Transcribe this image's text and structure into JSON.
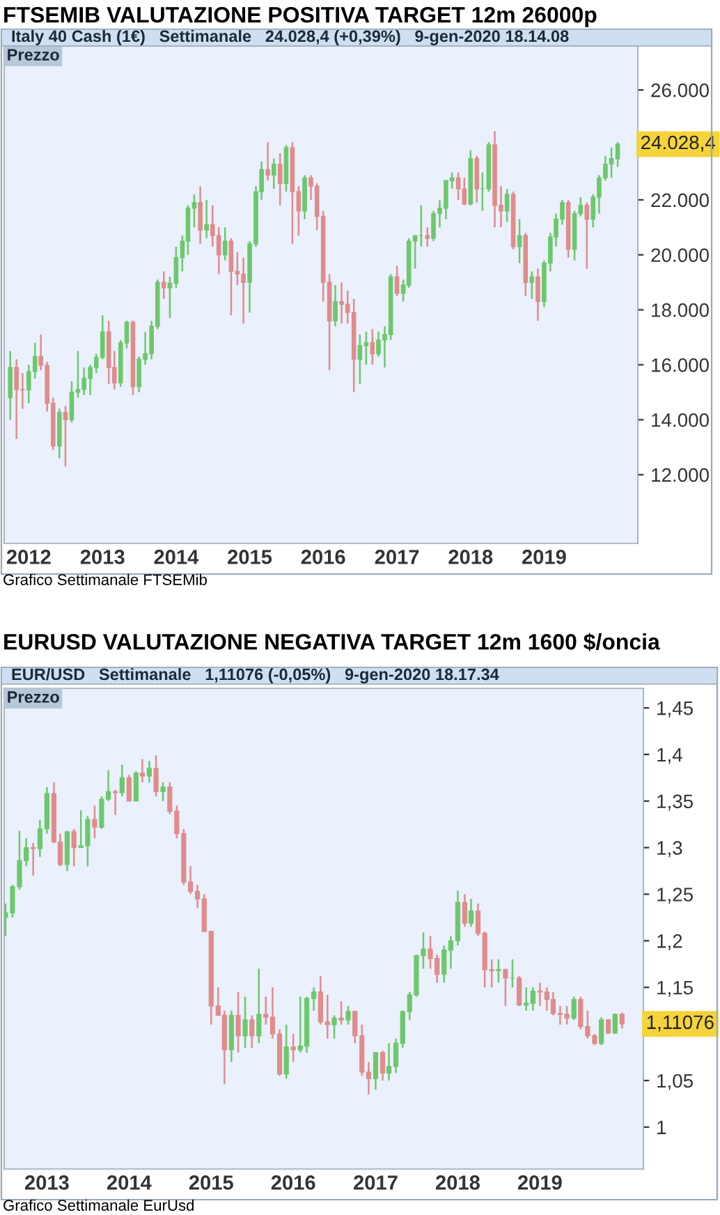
{
  "chart_data": [
    {
      "type": "candlestick",
      "title": "FTSEMIB VALUTAZIONE POSITIVA TARGET 12m 26000p",
      "subtitle": "Italy 40 Cash (1€)   Settimanale   24.028,4 (+0,39%)   9-gen-2020 18.14.08",
      "annotations": [
        "Prezzo",
        {
          "text": "24.028,4",
          "x": "2020-01",
          "y": 24028.4
        },
        "Grafico Settimanale FTSEMib"
      ],
      "x": [
        "2011-10",
        "2011-11",
        "2011-12",
        "2012-01",
        "2012-02",
        "2012-03",
        "2012-04",
        "2012-05",
        "2012-06",
        "2012-07",
        "2012-08",
        "2012-09",
        "2012-10",
        "2012-11",
        "2012-12",
        "2013-01",
        "2013-02",
        "2013-03",
        "2013-04",
        "2013-05",
        "2013-06",
        "2013-07",
        "2013-08",
        "2013-09",
        "2013-10",
        "2013-11",
        "2013-12",
        "2014-01",
        "2014-02",
        "2014-03",
        "2014-04",
        "2014-05",
        "2014-06",
        "2014-07",
        "2014-08",
        "2014-09",
        "2014-10",
        "2014-11",
        "2014-12",
        "2015-01",
        "2015-02",
        "2015-03",
        "2015-04",
        "2015-05",
        "2015-06",
        "2015-07",
        "2015-08",
        "2015-09",
        "2015-10",
        "2015-11",
        "2015-12",
        "2016-01",
        "2016-02",
        "2016-03",
        "2016-04",
        "2016-05",
        "2016-06",
        "2016-07",
        "2016-08",
        "2016-09",
        "2016-10",
        "2016-11",
        "2016-12",
        "2017-01",
        "2017-02",
        "2017-03",
        "2017-04",
        "2017-05",
        "2017-06",
        "2017-07",
        "2017-08",
        "2017-09",
        "2017-10",
        "2017-11",
        "2017-12",
        "2018-01",
        "2018-02",
        "2018-03",
        "2018-04",
        "2018-05",
        "2018-06",
        "2018-07",
        "2018-08",
        "2018-09",
        "2018-10",
        "2018-11",
        "2018-12",
        "2019-01",
        "2019-02",
        "2019-03",
        "2019-04",
        "2019-05",
        "2019-06",
        "2019-07",
        "2019-08",
        "2019-09",
        "2019-10",
        "2019-11",
        "2019-12",
        "2020-01"
      ],
      "ohlc": [
        [
          14800,
          16500,
          14000,
          15900
        ],
        [
          15900,
          16200,
          13300,
          15100
        ],
        [
          15100,
          15700,
          14400,
          15090
        ],
        [
          15090,
          16000,
          14600,
          15750
        ],
        [
          15750,
          16800,
          15500,
          16300
        ],
        [
          16300,
          17100,
          15800,
          15980
        ],
        [
          15980,
          16100,
          14300,
          14600
        ],
        [
          14600,
          14800,
          12900,
          13050
        ],
        [
          13050,
          14400,
          12600,
          14270
        ],
        [
          14270,
          14500,
          12300,
          14000
        ],
        [
          14000,
          15400,
          13900,
          15000
        ],
        [
          15000,
          16500,
          14800,
          15100
        ],
        [
          15100,
          15900,
          14900,
          15500
        ],
        [
          15500,
          16000,
          14900,
          15900
        ],
        [
          15900,
          16400,
          15700,
          16270
        ],
        [
          16270,
          17800,
          16200,
          17200
        ],
        [
          17200,
          17600,
          15300,
          15900
        ],
        [
          15900,
          16500,
          15100,
          15340
        ],
        [
          15340,
          16900,
          15200,
          16800
        ],
        [
          16800,
          17600,
          16600,
          17550
        ],
        [
          17550,
          17600,
          14900,
          15200
        ],
        [
          15200,
          16300,
          15000,
          16200
        ],
        [
          16200,
          17200,
          16000,
          16400
        ],
        [
          16400,
          17600,
          16200,
          17400
        ],
        [
          17400,
          19100,
          17300,
          19000
        ],
        [
          19000,
          19400,
          18400,
          18800
        ],
        [
          18800,
          19200,
          17700,
          18970
        ],
        [
          18970,
          20300,
          18800,
          19900
        ],
        [
          19900,
          20700,
          19400,
          20500
        ],
        [
          20500,
          21800,
          20000,
          21700
        ],
        [
          21700,
          22200,
          21000,
          21900
        ],
        [
          21900,
          22500,
          20400,
          20900
        ],
        [
          20900,
          22000,
          20600,
          21100
        ],
        [
          21100,
          21800,
          20300,
          20700
        ],
        [
          20700,
          21000,
          19300,
          20000
        ],
        [
          20000,
          21000,
          19800,
          20500
        ],
        [
          20500,
          20600,
          17800,
          19400
        ],
        [
          19400,
          20100,
          18900,
          19300
        ],
        [
          19300,
          19900,
          17500,
          19000
        ],
        [
          19000,
          20500,
          17900,
          20400
        ],
        [
          20400,
          22500,
          20300,
          22300
        ],
        [
          22300,
          23400,
          22000,
          23100
        ],
        [
          23100,
          24100,
          22700,
          22900
        ],
        [
          22900,
          23500,
          22400,
          23300
        ],
        [
          23300,
          23700,
          21800,
          22600
        ],
        [
          22600,
          24000,
          22300,
          23900
        ],
        [
          23900,
          24100,
          20400,
          22300
        ],
        [
          22300,
          22500,
          20700,
          21600
        ],
        [
          21600,
          22900,
          21300,
          22800
        ],
        [
          22800,
          22900,
          22000,
          22500
        ],
        [
          22500,
          22600,
          20900,
          21400
        ],
        [
          21400,
          21600,
          18300,
          19000
        ],
        [
          19000,
          19300,
          15800,
          17600
        ],
        [
          17600,
          18900,
          17400,
          18300
        ],
        [
          18300,
          19000,
          17500,
          18200
        ],
        [
          18200,
          18700,
          17500,
          17900
        ],
        [
          17900,
          18400,
          15000,
          16200
        ],
        [
          16200,
          17100,
          15300,
          16700
        ],
        [
          16700,
          17200,
          16000,
          16800
        ],
        [
          16800,
          17300,
          16000,
          16400
        ],
        [
          16400,
          17200,
          16300,
          16900
        ],
        [
          16900,
          17400,
          15900,
          17100
        ],
        [
          17100,
          19300,
          16900,
          19200
        ],
        [
          19200,
          19600,
          18500,
          18600
        ],
        [
          18600,
          19100,
          18300,
          18900
        ],
        [
          18900,
          20600,
          18800,
          20500
        ],
        [
          20500,
          20700,
          19500,
          20700
        ],
        [
          20700,
          21800,
          20300,
          20700
        ],
        [
          20700,
          21000,
          20300,
          20600
        ],
        [
          20600,
          21600,
          20500,
          21500
        ],
        [
          21500,
          22000,
          21000,
          21700
        ],
        [
          21700,
          22700,
          21300,
          22700
        ],
        [
          22700,
          23000,
          22400,
          22800
        ],
        [
          22800,
          23000,
          22000,
          22400
        ],
        [
          22400,
          22800,
          21800,
          21850
        ],
        [
          21850,
          23800,
          21800,
          23500
        ],
        [
          23500,
          23600,
          21900,
          22400
        ],
        [
          22400,
          23000,
          21600,
          22400
        ],
        [
          22400,
          24100,
          22300,
          24000
        ],
        [
          24000,
          24500,
          21000,
          21800
        ],
        [
          21800,
          22500,
          21000,
          21600
        ],
        [
          21600,
          22400,
          21200,
          22200
        ],
        [
          22200,
          22300,
          20200,
          20300
        ],
        [
          20300,
          21300,
          19700,
          20700
        ],
        [
          20700,
          20800,
          18500,
          19000
        ],
        [
          19000,
          19400,
          18400,
          19200
        ],
        [
          19200,
          19500,
          17600,
          18300
        ],
        [
          18300,
          19800,
          18100,
          19700
        ],
        [
          19700,
          20800,
          19400,
          20650
        ],
        [
          20650,
          21500,
          20300,
          21300
        ],
        [
          21300,
          22000,
          21100,
          21900
        ],
        [
          21900,
          22000,
          19900,
          20200
        ],
        [
          20200,
          21600,
          19800,
          21500
        ],
        [
          21500,
          22100,
          21400,
          21800
        ],
        [
          21800,
          21900,
          19500,
          21300
        ],
        [
          21300,
          22200,
          21000,
          22100
        ],
        [
          22100,
          22900,
          21500,
          22800
        ],
        [
          22800,
          23600,
          22700,
          23300
        ],
        [
          23300,
          23900,
          22800,
          23500
        ],
        [
          23500,
          24100,
          23200,
          24028.4
        ]
      ],
      "colors": [
        "#6cc86c",
        "#e08c8c",
        "#e08c8c",
        "#6cc86c",
        "#6cc86c",
        "#e08c8c",
        "#e08c8c",
        "#e08c8c",
        "#6cc86c",
        "#e08c8c",
        "#6cc86c",
        "#6cc86c",
        "#6cc86c",
        "#6cc86c",
        "#6cc86c",
        "#6cc86c",
        "#e08c8c",
        "#e08c8c",
        "#6cc86c",
        "#6cc86c",
        "#e08c8c",
        "#6cc86c",
        "#6cc86c",
        "#6cc86c",
        "#6cc86c",
        "#e08c8c",
        "#6cc86c",
        "#6cc86c",
        "#6cc86c",
        "#6cc86c",
        "#6cc86c",
        "#e08c8c",
        "#6cc86c",
        "#e08c8c",
        "#e08c8c",
        "#6cc86c",
        "#e08c8c",
        "#e08c8c",
        "#e08c8c",
        "#6cc86c",
        "#6cc86c",
        "#6cc86c",
        "#e08c8c",
        "#6cc86c",
        "#e08c8c",
        "#6cc86c",
        "#e08c8c",
        "#e08c8c",
        "#6cc86c",
        "#e08c8c",
        "#e08c8c",
        "#e08c8c",
        "#e08c8c",
        "#6cc86c",
        "#e08c8c",
        "#e08c8c",
        "#e08c8c",
        "#6cc86c",
        "#6cc86c",
        "#e08c8c",
        "#6cc86c",
        "#6cc86c",
        "#6cc86c",
        "#e08c8c",
        "#6cc86c",
        "#6cc86c",
        "#6cc86c",
        "#6cc86c",
        "#e08c8c",
        "#6cc86c",
        "#6cc86c",
        "#6cc86c",
        "#6cc86c",
        "#e08c8c",
        "#e08c8c",
        "#6cc86c",
        "#e08c8c",
        "#6cc86c",
        "#6cc86c",
        "#e08c8c",
        "#e08c8c",
        "#6cc86c",
        "#e08c8c",
        "#6cc86c",
        "#e08c8c",
        "#6cc86c",
        "#e08c8c",
        "#6cc86c",
        "#6cc86c",
        "#6cc86c",
        "#6cc86c",
        "#e08c8c",
        "#6cc86c",
        "#6cc86c",
        "#e08c8c",
        "#6cc86c",
        "#6cc86c",
        "#6cc86c",
        "#6cc86c",
        "#6cc86c"
      ],
      "xlim": [
        "2011-09-01",
        "2020-04-10"
      ],
      "xticks": [
        {
          "value": "2012",
          "label": "2012"
        },
        {
          "value": "2013",
          "label": "2013"
        },
        {
          "value": "2014",
          "label": "2014"
        },
        {
          "value": "2015",
          "label": "2015"
        },
        {
          "value": "2016",
          "label": "2016"
        },
        {
          "value": "2017",
          "label": "2017"
        },
        {
          "value": "2018",
          "label": "2018"
        },
        {
          "value": "2019",
          "label": "2019"
        }
      ],
      "ylim": [
        9500,
        27600
      ],
      "yticks": [
        {
          "value": 12000,
          "label": "12.000"
        },
        {
          "value": 14000,
          "label": "14.000"
        },
        {
          "value": 16000,
          "label": "16.000"
        },
        {
          "value": 18000,
          "label": "18.000"
        },
        {
          "value": 20000,
          "label": "20.000"
        },
        {
          "value": 22000,
          "label": "22.000"
        },
        {
          "value": 26000,
          "label": "26.000"
        }
      ]
    },
    {
      "type": "candlestick",
      "title": "EURUSD VALUTAZIONE NEGATIVA TARGET 12m 1600 $/oncia",
      "subtitle": "EUR/USD   Settimanale   1,11076 (-0,05%)   9-gen-2020 18.17.34",
      "annotations": [
        "Prezzo",
        {
          "text": "1,11076",
          "x": "2020-01",
          "y": 1.11076
        },
        "Grafico Settimanale EurUsd"
      ],
      "x": [
        "2012-07",
        "2012-08",
        "2012-09",
        "2012-10",
        "2012-11",
        "2012-12",
        "2013-01",
        "2013-02",
        "2013-03",
        "2013-04",
        "2013-05",
        "2013-06",
        "2013-07",
        "2013-08",
        "2013-09",
        "2013-10",
        "2013-11",
        "2013-12",
        "2014-01",
        "2014-02",
        "2014-03",
        "2014-04",
        "2014-05",
        "2014-06",
        "2014-07",
        "2014-08",
        "2014-09",
        "2014-10",
        "2014-11",
        "2014-12",
        "2015-01",
        "2015-02",
        "2015-03",
        "2015-04",
        "2015-05",
        "2015-06",
        "2015-07",
        "2015-08",
        "2015-09",
        "2015-10",
        "2015-11",
        "2015-12",
        "2016-01",
        "2016-02",
        "2016-03",
        "2016-04",
        "2016-05",
        "2016-06",
        "2016-07",
        "2016-08",
        "2016-09",
        "2016-10",
        "2016-11",
        "2016-12",
        "2017-01",
        "2017-02",
        "2017-03",
        "2017-04",
        "2017-05",
        "2017-06",
        "2017-07",
        "2017-08",
        "2017-09",
        "2017-10",
        "2017-11",
        "2017-12",
        "2018-01",
        "2018-02",
        "2018-03",
        "2018-04",
        "2018-05",
        "2018-06",
        "2018-07",
        "2018-08",
        "2018-09",
        "2018-10",
        "2018-11",
        "2018-12",
        "2019-01",
        "2019-02",
        "2019-03",
        "2019-04",
        "2019-05",
        "2019-06",
        "2019-07",
        "2019-08",
        "2019-09",
        "2019-10",
        "2019-11",
        "2019-12",
        "2020-01"
      ],
      "ohlc": [
        [
          1.225,
          1.24,
          1.205,
          1.23
        ],
        [
          1.23,
          1.26,
          1.225,
          1.258
        ],
        [
          1.258,
          1.318,
          1.255,
          1.286
        ],
        [
          1.286,
          1.31,
          1.28,
          1.3
        ],
        [
          1.3,
          1.305,
          1.27,
          1.299
        ],
        [
          1.299,
          1.33,
          1.29,
          1.32
        ],
        [
          1.32,
          1.365,
          1.315,
          1.358
        ],
        [
          1.358,
          1.37,
          1.305,
          1.306
        ],
        [
          1.306,
          1.315,
          1.28,
          1.282
        ],
        [
          1.282,
          1.318,
          1.275,
          1.317
        ],
        [
          1.317,
          1.32,
          1.28,
          1.3
        ],
        [
          1.3,
          1.34,
          1.3,
          1.302
        ],
        [
          1.302,
          1.334,
          1.28,
          1.33
        ],
        [
          1.33,
          1.345,
          1.31,
          1.322
        ],
        [
          1.322,
          1.355,
          1.32,
          1.352
        ],
        [
          1.352,
          1.383,
          1.35,
          1.36
        ],
        [
          1.36,
          1.362,
          1.335,
          1.359
        ],
        [
          1.359,
          1.389,
          1.355,
          1.375
        ],
        [
          1.375,
          1.378,
          1.35,
          1.35
        ],
        [
          1.35,
          1.382,
          1.35,
          1.38
        ],
        [
          1.38,
          1.395,
          1.37,
          1.377
        ],
        [
          1.377,
          1.393,
          1.37,
          1.385
        ],
        [
          1.385,
          1.399,
          1.355,
          1.36
        ],
        [
          1.36,
          1.37,
          1.35,
          1.365
        ],
        [
          1.365,
          1.37,
          1.336,
          1.339
        ],
        [
          1.339,
          1.345,
          1.31,
          1.315
        ],
        [
          1.315,
          1.32,
          1.26,
          1.263
        ],
        [
          1.263,
          1.28,
          1.25,
          1.253
        ],
        [
          1.253,
          1.26,
          1.235,
          1.245
        ],
        [
          1.245,
          1.25,
          1.21,
          1.21
        ],
        [
          1.21,
          1.21,
          1.11,
          1.13
        ],
        [
          1.13,
          1.15,
          1.12,
          1.12
        ],
        [
          1.12,
          1.125,
          1.046,
          1.083
        ],
        [
          1.083,
          1.125,
          1.07,
          1.12
        ],
        [
          1.12,
          1.145,
          1.08,
          1.098
        ],
        [
          1.098,
          1.14,
          1.085,
          1.115
        ],
        [
          1.115,
          1.12,
          1.085,
          1.098
        ],
        [
          1.098,
          1.17,
          1.09,
          1.121
        ],
        [
          1.121,
          1.14,
          1.11,
          1.118
        ],
        [
          1.118,
          1.15,
          1.095,
          1.1
        ],
        [
          1.1,
          1.105,
          1.055,
          1.057
        ],
        [
          1.057,
          1.11,
          1.052,
          1.086
        ],
        [
          1.086,
          1.1,
          1.07,
          1.083
        ],
        [
          1.083,
          1.14,
          1.08,
          1.087
        ],
        [
          1.087,
          1.14,
          1.08,
          1.138
        ],
        [
          1.138,
          1.15,
          1.125,
          1.145
        ],
        [
          1.145,
          1.162,
          1.11,
          1.113
        ],
        [
          1.113,
          1.142,
          1.095,
          1.11
        ],
        [
          1.11,
          1.12,
          1.095,
          1.117
        ],
        [
          1.117,
          1.135,
          1.11,
          1.115
        ],
        [
          1.115,
          1.13,
          1.11,
          1.124
        ],
        [
          1.124,
          1.125,
          1.09,
          1.098
        ],
        [
          1.098,
          1.11,
          1.055,
          1.059
        ],
        [
          1.059,
          1.07,
          1.035,
          1.052
        ],
        [
          1.052,
          1.08,
          1.04,
          1.08
        ],
        [
          1.08,
          1.082,
          1.05,
          1.058
        ],
        [
          1.058,
          1.09,
          1.05,
          1.065
        ],
        [
          1.065,
          1.095,
          1.058,
          1.09
        ],
        [
          1.09,
          1.125,
          1.085,
          1.124
        ],
        [
          1.124,
          1.145,
          1.115,
          1.142
        ],
        [
          1.142,
          1.185,
          1.14,
          1.184
        ],
        [
          1.184,
          1.209,
          1.17,
          1.191
        ],
        [
          1.191,
          1.205,
          1.17,
          1.181
        ],
        [
          1.181,
          1.185,
          1.155,
          1.164
        ],
        [
          1.164,
          1.195,
          1.155,
          1.19
        ],
        [
          1.19,
          1.205,
          1.17,
          1.2
        ],
        [
          1.2,
          1.254,
          1.195,
          1.241
        ],
        [
          1.241,
          1.25,
          1.215,
          1.219
        ],
        [
          1.219,
          1.245,
          1.215,
          1.232
        ],
        [
          1.232,
          1.24,
          1.205,
          1.208
        ],
        [
          1.208,
          1.21,
          1.15,
          1.169
        ],
        [
          1.169,
          1.18,
          1.15,
          1.168
        ],
        [
          1.168,
          1.18,
          1.155,
          1.169
        ],
        [
          1.169,
          1.17,
          1.13,
          1.16
        ],
        [
          1.16,
          1.18,
          1.15,
          1.16
        ],
        [
          1.16,
          1.162,
          1.13,
          1.131
        ],
        [
          1.131,
          1.15,
          1.125,
          1.133
        ],
        [
          1.133,
          1.15,
          1.125,
          1.146
        ],
        [
          1.146,
          1.155,
          1.13,
          1.145
        ],
        [
          1.145,
          1.15,
          1.125,
          1.137
        ],
        [
          1.137,
          1.145,
          1.12,
          1.122
        ],
        [
          1.122,
          1.13,
          1.11,
          1.121
        ],
        [
          1.121,
          1.13,
          1.11,
          1.117
        ],
        [
          1.117,
          1.14,
          1.115,
          1.137
        ],
        [
          1.137,
          1.14,
          1.105,
          1.108
        ],
        [
          1.108,
          1.125,
          1.095,
          1.098
        ],
        [
          1.098,
          1.1,
          1.088,
          1.09
        ],
        [
          1.09,
          1.118,
          1.088,
          1.115
        ],
        [
          1.115,
          1.116,
          1.1,
          1.101
        ],
        [
          1.101,
          1.122,
          1.1,
          1.121
        ],
        [
          1.121,
          1.123,
          1.106,
          1.11076
        ]
      ],
      "colors": [
        "#6cc86c",
        "#6cc86c",
        "#6cc86c",
        "#6cc86c",
        "#e08c8c",
        "#6cc86c",
        "#6cc86c",
        "#e08c8c",
        "#e08c8c",
        "#6cc86c",
        "#e08c8c",
        "#6cc86c",
        "#6cc86c",
        "#e08c8c",
        "#6cc86c",
        "#6cc86c",
        "#e08c8c",
        "#6cc86c",
        "#e08c8c",
        "#6cc86c",
        "#e08c8c",
        "#6cc86c",
        "#e08c8c",
        "#6cc86c",
        "#e08c8c",
        "#e08c8c",
        "#e08c8c",
        "#e08c8c",
        "#e08c8c",
        "#e08c8c",
        "#e08c8c",
        "#e08c8c",
        "#e08c8c",
        "#6cc86c",
        "#e08c8c",
        "#6cc86c",
        "#e08c8c",
        "#6cc86c",
        "#e08c8c",
        "#e08c8c",
        "#e08c8c",
        "#6cc86c",
        "#e08c8c",
        "#6cc86c",
        "#6cc86c",
        "#6cc86c",
        "#e08c8c",
        "#e08c8c",
        "#6cc86c",
        "#e08c8c",
        "#6cc86c",
        "#e08c8c",
        "#e08c8c",
        "#e08c8c",
        "#6cc86c",
        "#e08c8c",
        "#6cc86c",
        "#6cc86c",
        "#6cc86c",
        "#6cc86c",
        "#6cc86c",
        "#6cc86c",
        "#e08c8c",
        "#e08c8c",
        "#6cc86c",
        "#6cc86c",
        "#6cc86c",
        "#e08c8c",
        "#6cc86c",
        "#e08c8c",
        "#e08c8c",
        "#e08c8c",
        "#6cc86c",
        "#e08c8c",
        "#6cc86c",
        "#e08c8c",
        "#6cc86c",
        "#6cc86c",
        "#e08c8c",
        "#e08c8c",
        "#e08c8c",
        "#e08c8c",
        "#e08c8c",
        "#6cc86c",
        "#e08c8c",
        "#e08c8c",
        "#e08c8c",
        "#6cc86c",
        "#e08c8c",
        "#6cc86c",
        "#e08c8c"
      ],
      "xlim": [
        "2012-06-25",
        "2020-04-05"
      ],
      "xticks": [
        {
          "value": "2013",
          "label": "2013"
        },
        {
          "value": "2014",
          "label": "2014"
        },
        {
          "value": "2015",
          "label": "2015"
        },
        {
          "value": "2016",
          "label": "2016"
        },
        {
          "value": "2017",
          "label": "2017"
        },
        {
          "value": "2018",
          "label": "2018"
        },
        {
          "value": "2019",
          "label": "2019"
        }
      ],
      "ylim": [
        0.955,
        1.471
      ],
      "yticks": [
        {
          "value": 1.0,
          "label": "1"
        },
        {
          "value": 1.05,
          "label": "1,05"
        },
        {
          "value": 1.1,
          "label": null
        },
        {
          "value": 1.15,
          "label": "1,15"
        },
        {
          "value": 1.2,
          "label": "1,2"
        },
        {
          "value": 1.25,
          "label": "1,25"
        },
        {
          "value": 1.3,
          "label": "1,3"
        },
        {
          "value": 1.35,
          "label": "1,35"
        },
        {
          "value": 1.4,
          "label": "1,4"
        },
        {
          "value": 1.45,
          "label": "1,45"
        }
      ]
    }
  ]
}
